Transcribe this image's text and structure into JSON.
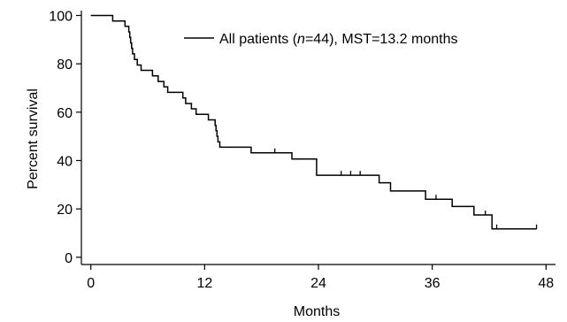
{
  "chart_data": {
    "type": "line",
    "subtype": "kaplan-meier",
    "xlabel": "Months",
    "ylabel": "Percent survival",
    "xlim": [
      -1,
      49
    ],
    "ylim": [
      -3,
      102
    ],
    "xticks": [
      0,
      12,
      24,
      36,
      48
    ],
    "yticks": [
      0,
      20,
      40,
      60,
      80,
      100
    ],
    "grid": false,
    "legend": {
      "position": "top-right",
      "prefix": "All patients (",
      "n_symbol": "n",
      "suffix": "=44), MST=13.2 months"
    },
    "series": [
      {
        "name": "All patients (n=44), MST=13.2 months",
        "color": "#000000",
        "steps": [
          [
            0,
            100
          ],
          [
            2.3,
            97.7
          ],
          [
            3.6,
            95.5
          ],
          [
            4.0,
            93.2
          ],
          [
            4.1,
            90.9
          ],
          [
            4.2,
            88.6
          ],
          [
            4.3,
            86.4
          ],
          [
            4.4,
            84.1
          ],
          [
            4.6,
            81.8
          ],
          [
            4.9,
            79.5
          ],
          [
            5.3,
            77.3
          ],
          [
            6.5,
            75.0
          ],
          [
            7.1,
            72.7
          ],
          [
            7.7,
            70.5
          ],
          [
            8.1,
            68.2
          ],
          [
            9.7,
            65.9
          ],
          [
            10.0,
            63.6
          ],
          [
            10.6,
            61.4
          ],
          [
            11.1,
            59.1
          ],
          [
            12.4,
            56.8
          ],
          [
            13.1,
            54.5
          ],
          [
            13.2,
            52.3
          ],
          [
            13.3,
            50.0
          ],
          [
            13.4,
            47.7
          ],
          [
            13.6,
            45.5
          ],
          [
            16.9,
            43.2
          ],
          [
            21.2,
            40.6
          ],
          [
            23.8,
            33.9
          ],
          [
            30.4,
            30.8
          ],
          [
            31.6,
            27.4
          ],
          [
            35.3,
            24.0
          ],
          [
            38.1,
            21.0
          ],
          [
            40.4,
            17.5
          ],
          [
            42.3,
            11.7
          ],
          [
            47.0,
            11.7
          ]
        ],
        "censored": [
          [
            19.4,
            43.2
          ],
          [
            26.4,
            33.9
          ],
          [
            27.4,
            33.9
          ],
          [
            28.4,
            33.9
          ],
          [
            36.4,
            24.0
          ],
          [
            41.6,
            17.5
          ],
          [
            42.8,
            11.7
          ],
          [
            47.0,
            11.7
          ]
        ]
      }
    ]
  }
}
